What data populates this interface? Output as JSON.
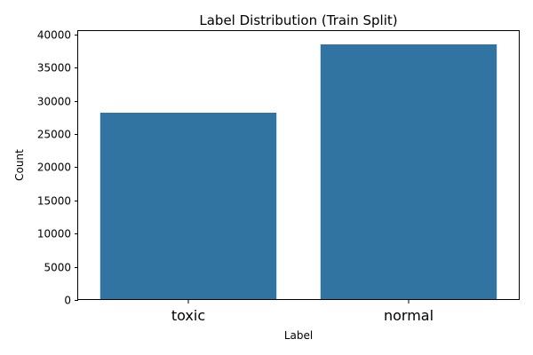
{
  "chart_data": {
    "type": "bar",
    "title": "Label Distribution (Train Split)",
    "xlabel": "Label",
    "ylabel": "Count",
    "categories": [
      "toxic",
      "normal"
    ],
    "values": [
      28200,
      38500
    ],
    "ylim": [
      0,
      40500
    ],
    "yticks": [
      0,
      5000,
      10000,
      15000,
      20000,
      25000,
      30000,
      35000,
      40000
    ],
    "bar_color": "#3274a1",
    "grid": false,
    "legend": "none"
  }
}
